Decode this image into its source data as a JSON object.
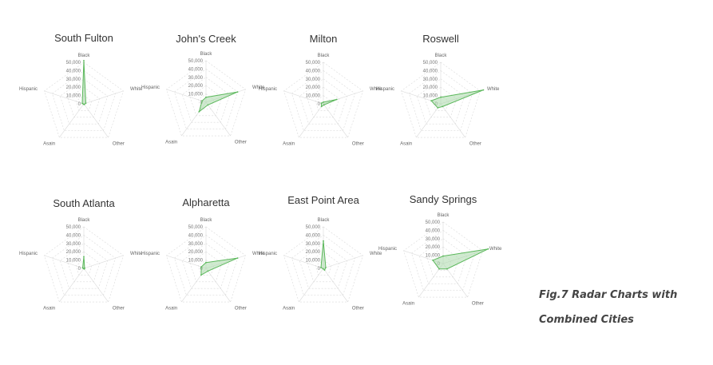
{
  "chart_data": [
    {
      "type": "radar",
      "title": "South Fulton",
      "axes": [
        "Black",
        "White",
        "Other",
        "Asain",
        "Hispanic"
      ],
      "ticks": [
        "50,000",
        "40,000",
        "30,000",
        "20,000",
        "10,000",
        "0"
      ],
      "ylim": [
        0,
        50000
      ],
      "values": [
        52000,
        2500,
        1000,
        600,
        2000
      ]
    },
    {
      "type": "radar",
      "title": "John's Creek",
      "axes": [
        "Black",
        "White",
        "Other",
        "Asain",
        "Hispanic"
      ],
      "ticks": [
        "50,000",
        "40,000",
        "30,000",
        "20,000",
        "10,000",
        "0"
      ],
      "ylim": [
        0,
        50000
      ],
      "values": [
        6000,
        40000,
        4000,
        14000,
        5000
      ]
    },
    {
      "type": "radar",
      "title": "Milton",
      "axes": [
        "Black",
        "White",
        "Other",
        "Asain",
        "Hispanic"
      ],
      "ticks": [
        "50,000",
        "40,000",
        "30,000",
        "20,000",
        "10,000",
        "0"
      ],
      "ylim": [
        0,
        50000
      ],
      "values": [
        2000,
        17000,
        1500,
        4000,
        2500
      ]
    },
    {
      "type": "radar",
      "title": "Roswell",
      "axes": [
        "Black",
        "White",
        "Other",
        "Asain",
        "Hispanic"
      ],
      "ticks": [
        "50,000",
        "40,000",
        "30,000",
        "20,000",
        "10,000",
        "0"
      ],
      "ylim": [
        0,
        50000
      ],
      "values": [
        8000,
        54000,
        4000,
        6000,
        12000
      ]
    },
    {
      "type": "radar",
      "title": "South Atlanta",
      "axes": [
        "Black",
        "White",
        "Other",
        "Asain",
        "Hispanic"
      ],
      "ticks": [
        "50,000",
        "40,000",
        "30,000",
        "20,000",
        "10,000",
        "0"
      ],
      "ylim": [
        0,
        50000
      ],
      "values": [
        14000,
        1000,
        1000,
        400,
        1500
      ]
    },
    {
      "type": "radar",
      "title": "Alpharetta",
      "axes": [
        "Black",
        "White",
        "Other",
        "Asain",
        "Hispanic"
      ],
      "ticks": [
        "50,000",
        "40,000",
        "30,000",
        "20,000",
        "10,000",
        "0"
      ],
      "ylim": [
        0,
        50000
      ],
      "values": [
        7000,
        40000,
        4000,
        10000,
        6000
      ]
    },
    {
      "type": "radar",
      "title": "East Point Area",
      "axes": [
        "Black",
        "White",
        "Other",
        "Asain",
        "Hispanic"
      ],
      "ticks": [
        "50,000",
        "40,000",
        "30,000",
        "20,000",
        "10,000",
        "0"
      ],
      "ylim": [
        0,
        50000
      ],
      "values": [
        33000,
        3000,
        2500,
        600,
        3000
      ]
    },
    {
      "type": "radar",
      "title": "Sandy Springs",
      "axes": [
        "Black",
        "White",
        "Other",
        "Asain",
        "Hispanic"
      ],
      "ticks": [
        "50,000",
        "40,000",
        "30,000",
        "20,000",
        "10,000",
        "0"
      ],
      "ylim": [
        0,
        50000
      ],
      "values": [
        9000,
        57000,
        8000,
        8000,
        13000
      ]
    }
  ],
  "caption": {
    "line1": "Fig.7 Radar Charts with",
    "line2": "Combined Cities"
  },
  "colors": {
    "series_stroke": "#5cb85c",
    "series_fill": "#a9d9a9",
    "grid": "#d9d9d9"
  }
}
